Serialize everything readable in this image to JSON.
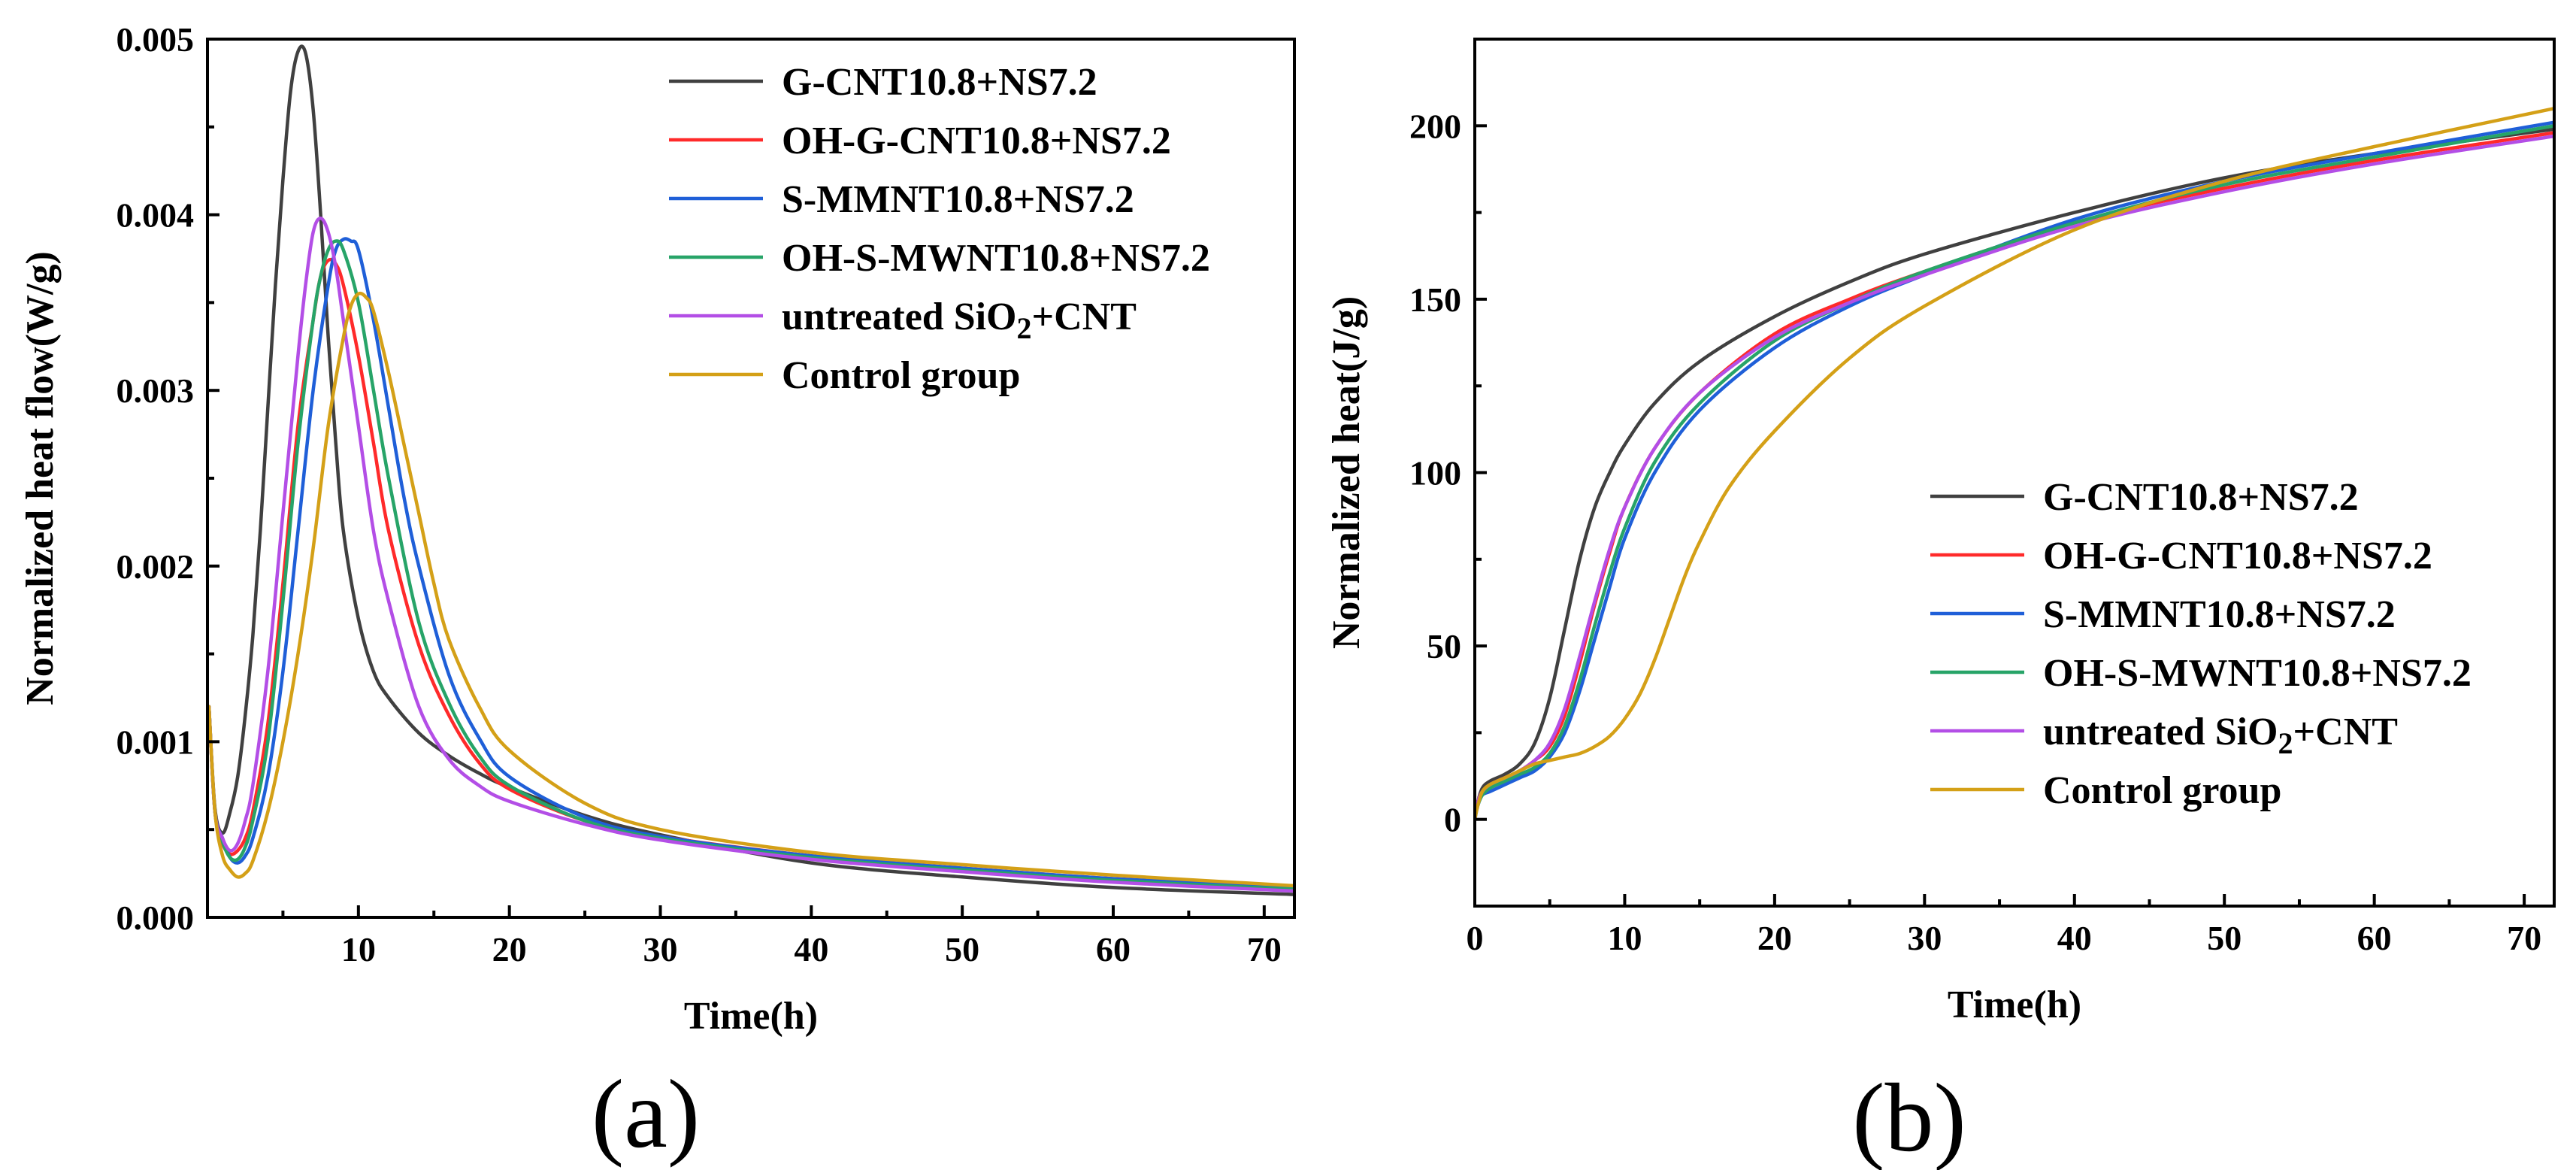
{
  "chart_data": [
    {
      "type": "line",
      "panel_label": "(a)",
      "title": "",
      "xlabel": "Time(h)",
      "ylabel": "Normalized heat flow(W/g)",
      "xlim": [
        0,
        72
      ],
      "ylim": [
        0,
        0.005
      ],
      "xticks": [
        10,
        20,
        30,
        40,
        50,
        60,
        70
      ],
      "yticks": [
        "0.000",
        "0.001",
        "0.002",
        "0.003",
        "0.004",
        "0.005"
      ],
      "legend_position": "top-right",
      "series": [
        {
          "name": "G-CNT10.8+NS7.2",
          "color": "#404040",
          "x": [
            0.1,
            0.5,
            1,
            1.5,
            2,
            2.5,
            3,
            3.5,
            4,
            4.5,
            5,
            5.5,
            6,
            6.5,
            7,
            7.5,
            8,
            8.5,
            9,
            10,
            11,
            12,
            14,
            16,
            18,
            20,
            25,
            30,
            40,
            50,
            60,
            72
          ],
          "values": [
            0.0012,
            0.00062,
            0.00048,
            0.0006,
            0.0008,
            0.00115,
            0.0016,
            0.0022,
            0.0029,
            0.0036,
            0.0042,
            0.0047,
            0.00493,
            0.00492,
            0.0046,
            0.004,
            0.0033,
            0.0027,
            0.0022,
            0.0017,
            0.0014,
            0.00125,
            0.00105,
            0.00092,
            0.00082,
            0.00074,
            0.00058,
            0.00047,
            0.00031,
            0.00023,
            0.00017,
            0.00013
          ]
        },
        {
          "name": "OH-G-CNT10.8+NS7.2",
          "color": "#ff2a2a",
          "x": [
            0.1,
            0.5,
            1,
            1.5,
            2,
            2.5,
            3,
            4,
            5,
            6,
            7,
            7.5,
            8,
            8.5,
            9,
            10,
            11,
            12,
            14,
            16,
            18,
            20,
            25,
            30,
            40,
            50,
            60,
            72
          ],
          "values": [
            0.0012,
            0.0006,
            0.00042,
            0.00036,
            0.00038,
            0.00045,
            0.0006,
            0.0011,
            0.0019,
            0.0028,
            0.0034,
            0.00365,
            0.00374,
            0.00372,
            0.0036,
            0.0032,
            0.0027,
            0.0022,
            0.00155,
            0.00115,
            0.00088,
            0.00073,
            0.00055,
            0.00046,
            0.00035,
            0.00028,
            0.00022,
            0.00017
          ]
        },
        {
          "name": "S-MMNT10.8+NS7.2",
          "color": "#1f5fd8",
          "x": [
            0.1,
            0.5,
            1,
            1.5,
            2,
            2.5,
            3,
            4,
            5,
            6,
            7,
            8,
            8.5,
            9,
            9.5,
            10,
            11,
            12,
            13,
            14,
            16,
            18,
            20,
            25,
            30,
            40,
            50,
            60,
            72
          ],
          "values": [
            0.0012,
            0.0006,
            0.00045,
            0.00034,
            0.00031,
            0.00035,
            0.00045,
            0.0008,
            0.0014,
            0.0022,
            0.003,
            0.0036,
            0.0038,
            0.00386,
            0.00385,
            0.0038,
            0.0034,
            0.0029,
            0.0024,
            0.002,
            0.00138,
            0.00102,
            0.0008,
            0.00057,
            0.00046,
            0.00035,
            0.00028,
            0.00022,
            0.00017
          ]
        },
        {
          "name": "OH-S-MWNT10.8+NS7.2",
          "color": "#27a468",
          "x": [
            0.1,
            0.5,
            1,
            1.5,
            2,
            2.5,
            3,
            4,
            5,
            6,
            7,
            7.5,
            8,
            8.5,
            9,
            10,
            11,
            12,
            14,
            16,
            18,
            20,
            25,
            30,
            40,
            50,
            60,
            72
          ],
          "values": [
            0.0012,
            0.0006,
            0.00043,
            0.00034,
            0.00033,
            0.0004,
            0.00055,
            0.001,
            0.0018,
            0.0027,
            0.0034,
            0.00365,
            0.0038,
            0.00385,
            0.0038,
            0.0035,
            0.003,
            0.0025,
            0.00168,
            0.00122,
            0.00092,
            0.00075,
            0.00055,
            0.00045,
            0.00034,
            0.00027,
            0.00021,
            0.00016
          ]
        },
        {
          "name": "untreated SiO2+CNT",
          "color": "#b34ee6",
          "x": [
            0.1,
            0.5,
            1,
            1.5,
            2,
            2.5,
            3,
            4,
            5,
            6,
            6.5,
            7,
            7.5,
            8,
            8.5,
            9,
            10,
            11,
            12,
            14,
            16,
            18,
            20,
            25,
            30,
            40,
            50,
            60,
            72
          ],
          "values": [
            0.0012,
            0.0006,
            0.00045,
            0.00038,
            0.00042,
            0.00055,
            0.00075,
            0.0014,
            0.0023,
            0.0032,
            0.0036,
            0.0039,
            0.00398,
            0.0039,
            0.0037,
            0.0034,
            0.0028,
            0.0022,
            0.0018,
            0.0012,
            0.0009,
            0.00075,
            0.00066,
            0.00053,
            0.00044,
            0.00033,
            0.00026,
            0.0002,
            0.00015
          ]
        },
        {
          "name": "Control group",
          "color": "#d4a017",
          "x": [
            0.1,
            0.5,
            1,
            1.5,
            2,
            2.5,
            3,
            4,
            5,
            6,
            7,
            8,
            9,
            9.5,
            10,
            10.5,
            11,
            12,
            13,
            14,
            15,
            16,
            18,
            20,
            25,
            30,
            40,
            50,
            60,
            72
          ],
          "values": [
            0.0012,
            0.0006,
            0.00035,
            0.00027,
            0.00023,
            0.00025,
            0.00032,
            0.0006,
            0.001,
            0.0015,
            0.0021,
            0.0028,
            0.0033,
            0.00348,
            0.00355,
            0.00353,
            0.00345,
            0.0031,
            0.0027,
            0.0023,
            0.0019,
            0.00158,
            0.0012,
            0.00095,
            0.00065,
            0.0005,
            0.00037,
            0.0003,
            0.00024,
            0.00018
          ]
        }
      ]
    },
    {
      "type": "line",
      "panel_label": "(b)",
      "title": "",
      "xlabel": "Time(h)",
      "ylabel": "Normalized heat(J/g)",
      "xlim": [
        0,
        72
      ],
      "ylim": [
        -25,
        225
      ],
      "xticks": [
        0,
        10,
        20,
        30,
        40,
        50,
        60,
        70
      ],
      "yticks": [
        0,
        50,
        100,
        150,
        200
      ],
      "legend_position": "center-right",
      "series": [
        {
          "name": "G-CNT10.8+NS7.2",
          "color": "#404040",
          "x": [
            0,
            0.2,
            0.5,
            1,
            2,
            3,
            4,
            5,
            6,
            7,
            8,
            9,
            10,
            12,
            15,
            20,
            25,
            30,
            40,
            50,
            60,
            72
          ],
          "values": [
            0,
            5,
            9,
            11,
            13,
            16,
            22,
            35,
            55,
            75,
            90,
            100,
            108,
            120,
            132,
            145,
            155,
            163,
            175,
            185,
            192,
            199
          ]
        },
        {
          "name": "OH-G-CNT10.8+NS7.2",
          "color": "#ff2a2a",
          "x": [
            0,
            0.2,
            0.5,
            1,
            2,
            3,
            4,
            5,
            6,
            7,
            8,
            9,
            10,
            12,
            15,
            20,
            25,
            30,
            40,
            50,
            60,
            72
          ],
          "values": [
            0,
            5,
            8,
            10,
            12,
            14,
            17,
            21,
            30,
            45,
            62,
            77,
            90,
            107,
            123,
            140,
            150,
            158,
            172,
            182,
            190,
            198
          ]
        },
        {
          "name": "S-MMNT10.8+NS7.2",
          "color": "#1f5fd8",
          "x": [
            0,
            0.2,
            0.5,
            1,
            2,
            3,
            4,
            5,
            6,
            7,
            8,
            9,
            10,
            12,
            15,
            20,
            25,
            30,
            40,
            50,
            60,
            72
          ],
          "values": [
            0,
            4,
            7,
            8,
            10,
            12,
            14,
            18,
            25,
            37,
            52,
            67,
            81,
            100,
            118,
            136,
            148,
            157,
            173,
            184,
            192,
            201
          ]
        },
        {
          "name": "OH-S-MWNT10.8+NS7.2",
          "color": "#27a468",
          "x": [
            0,
            0.2,
            0.5,
            1,
            2,
            3,
            4,
            5,
            6,
            7,
            8,
            9,
            10,
            12,
            15,
            20,
            25,
            30,
            40,
            50,
            60,
            72
          ],
          "values": [
            0,
            4,
            7,
            9,
            11,
            13,
            15,
            19,
            27,
            40,
            56,
            71,
            84,
            103,
            120,
            138,
            149,
            158,
            172,
            183,
            191,
            200
          ]
        },
        {
          "name": "untreated SiO2+CNT",
          "color": "#b34ee6",
          "x": [
            0,
            0.2,
            0.5,
            1,
            2,
            3,
            4,
            5,
            6,
            7,
            8,
            9,
            10,
            12,
            15,
            20,
            25,
            30,
            40,
            50,
            60,
            72
          ],
          "values": [
            0,
            5,
            8,
            10,
            12,
            14,
            17,
            22,
            32,
            47,
            63,
            78,
            90,
            107,
            123,
            139,
            149,
            157,
            171,
            181,
            189,
            197
          ]
        },
        {
          "name": "Control group",
          "color": "#d4a017",
          "x": [
            0,
            0.2,
            0.5,
            1,
            2,
            3,
            4,
            5,
            6,
            7,
            8,
            9,
            10,
            11,
            12,
            13,
            14,
            15,
            17,
            20,
            25,
            30,
            40,
            50,
            60,
            72
          ],
          "values": [
            0,
            4,
            8,
            10,
            12,
            14,
            16,
            17,
            18,
            19,
            21,
            24,
            29,
            36,
            46,
            58,
            70,
            80,
            96,
            112,
            133,
            148,
            170,
            184,
            194,
            205
          ]
        }
      ]
    }
  ]
}
